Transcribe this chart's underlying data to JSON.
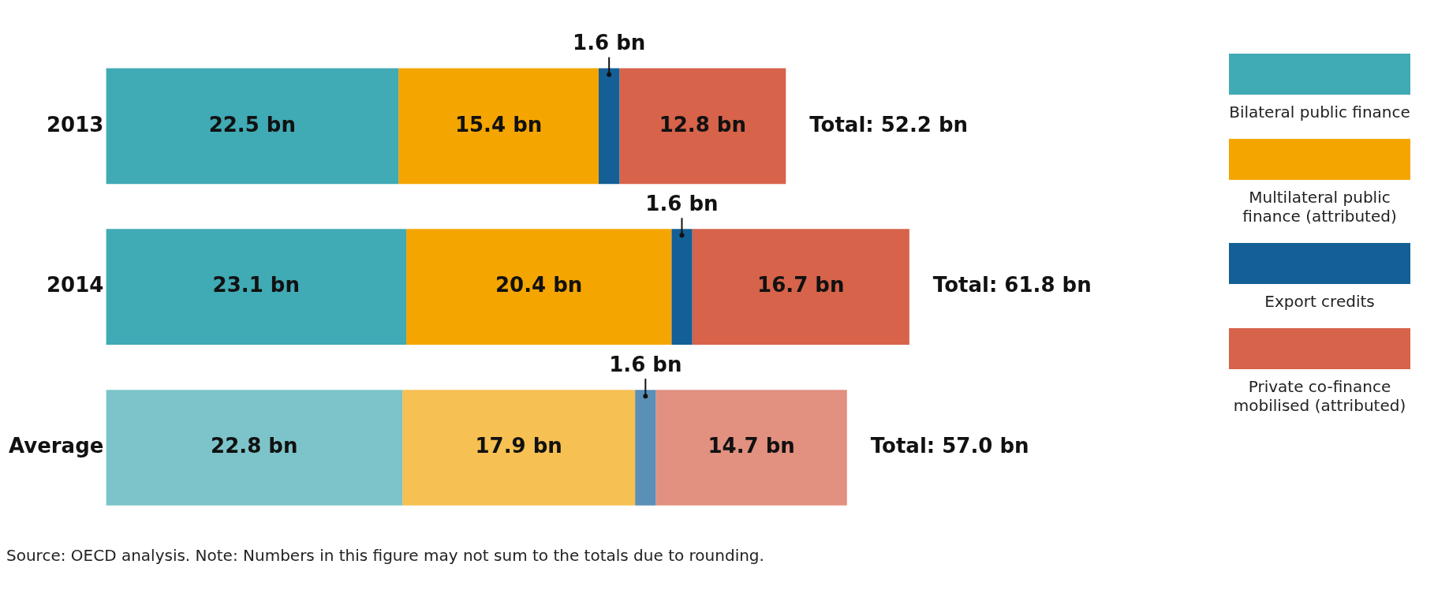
{
  "chart_data": {
    "type": "bar",
    "orientation": "horizontal",
    "stacked": true,
    "categories": [
      "2013",
      "2014",
      "Average"
    ],
    "series": [
      {
        "name": "Bilateral public finance",
        "color": "#40aab5",
        "colors": [
          "#40aab5",
          "#40aab5",
          "#7cc4ca"
        ],
        "values": [
          22.5,
          23.1,
          22.8
        ],
        "value_labels": [
          "22.5 bn",
          "23.1 bn",
          "22.8 bn"
        ]
      },
      {
        "name": "Multilateral public finance (attributed)",
        "color": "#f5a500",
        "colors": [
          "#f5a500",
          "#f5a500",
          "#f6c052"
        ],
        "values": [
          15.4,
          20.4,
          17.9
        ],
        "value_labels": [
          "15.4 bn",
          "20.4 bn",
          "17.9 bn"
        ]
      },
      {
        "name": "Export credits",
        "color": "#135f96",
        "colors": [
          "#135f96",
          "#135f96",
          "#5a8fb8"
        ],
        "values": [
          1.6,
          1.6,
          1.6
        ],
        "value_labels": [
          "1.6 bn",
          "1.6 bn",
          "1.6 bn"
        ]
      },
      {
        "name": "Private co-finance mobilised (attributed)",
        "color": "#d6634a",
        "colors": [
          "#d6634a",
          "#d6634a",
          "#e29080"
        ],
        "values": [
          12.8,
          16.7,
          14.7
        ],
        "value_labels": [
          "12.8 bn",
          "16.7 bn",
          "14.7 bn"
        ]
      }
    ],
    "totals": [
      "Total: 52.2 bn",
      "Total: 61.8 bn",
      "Total: 57.0 bn"
    ],
    "legend": "right",
    "grid": false,
    "annotations": [
      "Source: OECD analysis.  Note: Numbers in this figure may not sum to the totals due to rounding."
    ]
  }
}
